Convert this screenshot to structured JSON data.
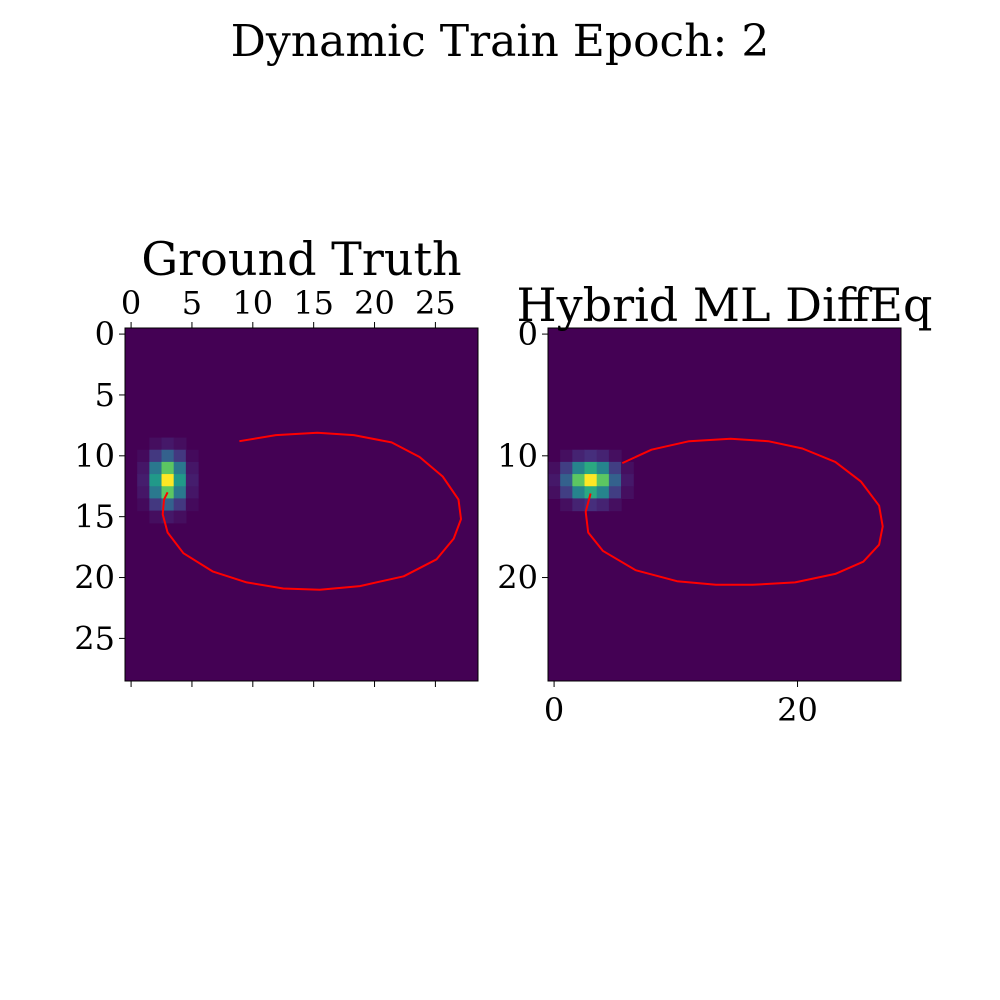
{
  "figure": {
    "suptitle": "Dynamic Train Epoch: 2"
  },
  "chart_data": [
    {
      "type": "heatmap",
      "title": "Ground Truth",
      "grid_size": 29,
      "colormap": [
        "#440154",
        "#46317e",
        "#365c8d",
        "#277f8e",
        "#1fa187",
        "#4ac16d",
        "#a0da39",
        "#fde725"
      ],
      "xaxis": {
        "position": "top",
        "ticks": [
          0,
          5,
          10,
          15,
          20,
          25
        ],
        "bottom_unlabeled_ticks": true
      },
      "yaxis": {
        "ticks": [
          0,
          5,
          10,
          15,
          20,
          25
        ]
      },
      "blob": {
        "center_x": 3,
        "center_y": 12,
        "sigma_x": 0.9,
        "sigma_y": 1.3
      },
      "trajectory": {
        "color": "#ff0000",
        "x": [
          8.9,
          11.9,
          15.3,
          18.3,
          21.4,
          23.7,
          25.6,
          26.9,
          27.1,
          26.5,
          25.1,
          22.4,
          18.8,
          15.5,
          12.5,
          9.5,
          6.7,
          4.3,
          3.0,
          2.6,
          2.7,
          3.0
        ],
        "y": [
          8.8,
          8.3,
          8.1,
          8.3,
          8.9,
          10.1,
          11.7,
          13.6,
          15.2,
          16.8,
          18.5,
          19.9,
          20.7,
          21.0,
          20.9,
          20.4,
          19.5,
          18.0,
          16.3,
          14.8,
          13.6,
          13.0
        ]
      }
    },
    {
      "type": "heatmap",
      "title": "Hybrid ML DiffEq",
      "grid_size": 29,
      "colormap": [
        "#440154",
        "#46317e",
        "#365c8d",
        "#277f8e",
        "#1fa187",
        "#4ac16d",
        "#a0da39",
        "#fde725"
      ],
      "xaxis": {
        "position": "bottom",
        "ticks": [
          0,
          20
        ]
      },
      "yaxis": {
        "ticks": [
          0,
          10,
          20
        ]
      },
      "blob": {
        "center_x": 3,
        "center_y": 12,
        "sigma_x": 1.3,
        "sigma_y": 1.0
      },
      "trajectory": {
        "color": "#ff0000",
        "x": [
          5.6,
          8.0,
          11.1,
          14.5,
          17.6,
          20.4,
          23.1,
          25.2,
          26.7,
          27.0,
          26.7,
          25.4,
          23.1,
          19.8,
          16.3,
          13.3,
          10.1,
          6.7,
          4.0,
          2.8,
          2.6,
          3.0
        ],
        "y": [
          10.6,
          9.5,
          8.8,
          8.6,
          8.8,
          9.4,
          10.5,
          12.1,
          14.1,
          15.8,
          17.3,
          18.7,
          19.7,
          20.4,
          20.6,
          20.6,
          20.3,
          19.4,
          17.8,
          16.3,
          14.6,
          13.1
        ]
      }
    }
  ]
}
